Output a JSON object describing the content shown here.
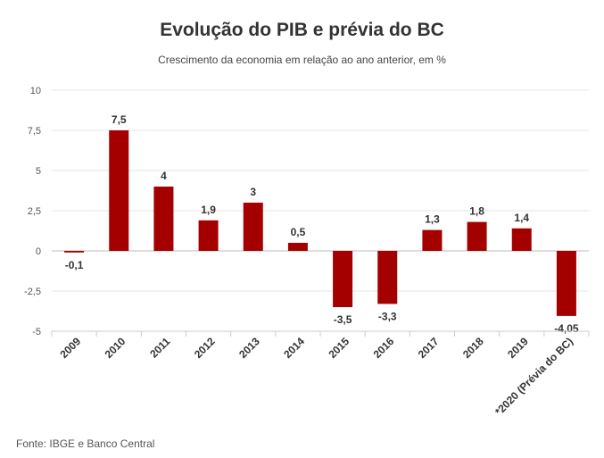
{
  "chart_data": {
    "type": "bar",
    "title": "Evolução do PIB e prévia do BC",
    "subtitle": "Crescimento da economia em relação ao ano anterior, em %",
    "categories": [
      "2009",
      "2010",
      "2011",
      "2012",
      "2013",
      "2014",
      "2015",
      "2016",
      "2017",
      "2018",
      "2019",
      "*2020 (Prévia do BC)"
    ],
    "values": [
      -0.1,
      7.5,
      4,
      1.9,
      3,
      0.5,
      -3.5,
      -3.3,
      1.3,
      1.8,
      1.4,
      -4.05
    ],
    "data_labels": [
      "-0,1",
      "7,5",
      "4",
      "1,9",
      "3",
      "0,5",
      "-3,5",
      "-3,3",
      "1,3",
      "1,8",
      "1,4",
      "-4,05"
    ],
    "yticks": [
      10,
      7.5,
      5,
      2.5,
      0,
      -2.5,
      -5
    ],
    "ytick_labels": [
      "10",
      "7,5",
      "5",
      "2,5",
      "0",
      "-2,5",
      "-5"
    ],
    "ylim": [
      -5,
      10
    ],
    "grid": true,
    "bar_color": "#a50000",
    "xlabel": "",
    "ylabel": ""
  },
  "source": "Fonte: IBGE e Banco Central"
}
